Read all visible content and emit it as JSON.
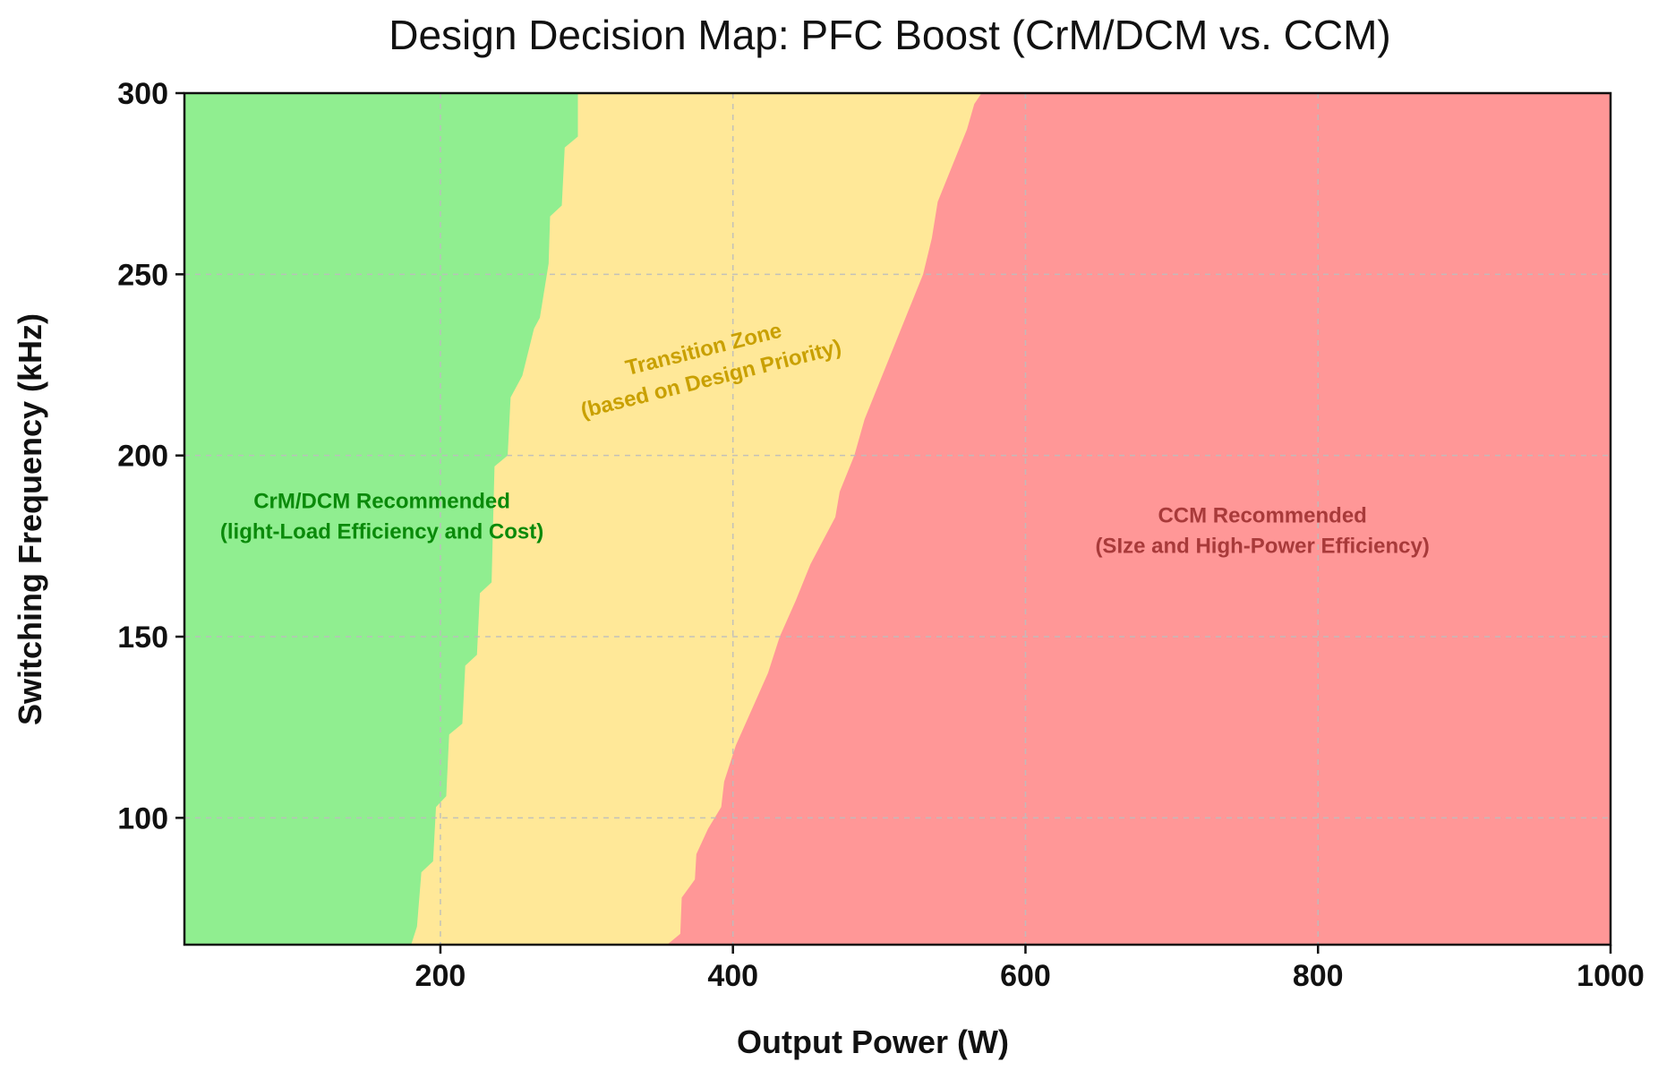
{
  "chart_data": {
    "type": "heatmap",
    "title": "Design Decision Map: PFC Boost (CrM/DCM vs. CCM)",
    "xlabel": "Output Power (W)",
    "ylabel": "Switching Frequency (kHz)",
    "xlim": [
      25,
      1000
    ],
    "ylim": [
      65,
      300
    ],
    "x_ticks": [
      200,
      400,
      600,
      800,
      1000
    ],
    "y_ticks": [
      100,
      150,
      200,
      250,
      300
    ],
    "x_tick_labels": [
      "200",
      "400",
      "600",
      "800",
      "1000"
    ],
    "y_tick_labels": [
      "100",
      "150",
      "200",
      "250",
      "300"
    ],
    "grid": true,
    "legend": "none",
    "regions": [
      {
        "name": "CrM/DCM",
        "label_lines": [
          "CrM/DCM Recommended",
          "(light-Load Efficiency and Cost)"
        ],
        "fill_color": "#90ee90",
        "label_color": "#0a8a0a",
        "label_position": {
          "x": 160,
          "y": 184
        },
        "label_rotation": 0
      },
      {
        "name": "Transition Zone",
        "label_lines": [
          "Transition Zone",
          "(based on Design Priority)"
        ],
        "fill_color": "#ffe898",
        "label_color": "#c9a000",
        "label_position": {
          "x": 382,
          "y": 226
        },
        "label_rotation": -14
      },
      {
        "name": "CCM",
        "label_lines": [
          "CCM Recommended",
          "(SIze and High-Power Efficiency)"
        ],
        "fill_color": "#ff9797",
        "label_color": "#a83a3a",
        "label_position": {
          "x": 762,
          "y": 180
        },
        "label_rotation": 0
      }
    ],
    "boundary_crm_to_transition": [
      {
        "y": 65,
        "x": 180
      },
      {
        "y": 70,
        "x": 184
      },
      {
        "y": 85,
        "x": 187
      },
      {
        "y": 88,
        "x": 195
      },
      {
        "y": 103,
        "x": 197
      },
      {
        "y": 106,
        "x": 204
      },
      {
        "y": 123,
        "x": 206
      },
      {
        "y": 126,
        "x": 215
      },
      {
        "y": 142,
        "x": 217
      },
      {
        "y": 145,
        "x": 225
      },
      {
        "y": 162,
        "x": 227
      },
      {
        "y": 165,
        "x": 235
      },
      {
        "y": 197,
        "x": 237
      },
      {
        "y": 200,
        "x": 246
      },
      {
        "y": 216,
        "x": 248
      },
      {
        "y": 222,
        "x": 256
      },
      {
        "y": 235,
        "x": 264
      },
      {
        "y": 238,
        "x": 268
      },
      {
        "y": 253,
        "x": 274
      },
      {
        "y": 266,
        "x": 275
      },
      {
        "y": 269,
        "x": 283
      },
      {
        "y": 285,
        "x": 285
      },
      {
        "y": 288,
        "x": 294
      },
      {
        "y": 300,
        "x": 294
      }
    ],
    "boundary_transition_to_ccm": [
      {
        "y": 65,
        "x": 355
      },
      {
        "y": 68,
        "x": 364
      },
      {
        "y": 78,
        "x": 365
      },
      {
        "y": 83,
        "x": 374
      },
      {
        "y": 90,
        "x": 375
      },
      {
        "y": 97,
        "x": 383
      },
      {
        "y": 103,
        "x": 392
      },
      {
        "y": 110,
        "x": 394
      },
      {
        "y": 120,
        "x": 402
      },
      {
        "y": 130,
        "x": 413
      },
      {
        "y": 140,
        "x": 424
      },
      {
        "y": 150,
        "x": 432
      },
      {
        "y": 160,
        "x": 443
      },
      {
        "y": 170,
        "x": 453
      },
      {
        "y": 183,
        "x": 470
      },
      {
        "y": 190,
        "x": 473
      },
      {
        "y": 200,
        "x": 483
      },
      {
        "y": 210,
        "x": 490
      },
      {
        "y": 220,
        "x": 500
      },
      {
        "y": 230,
        "x": 510
      },
      {
        "y": 240,
        "x": 520
      },
      {
        "y": 250,
        "x": 530
      },
      {
        "y": 260,
        "x": 536
      },
      {
        "y": 270,
        "x": 540
      },
      {
        "y": 280,
        "x": 550
      },
      {
        "y": 290,
        "x": 560
      },
      {
        "y": 297,
        "x": 565
      },
      {
        "y": 300,
        "x": 570
      }
    ]
  }
}
